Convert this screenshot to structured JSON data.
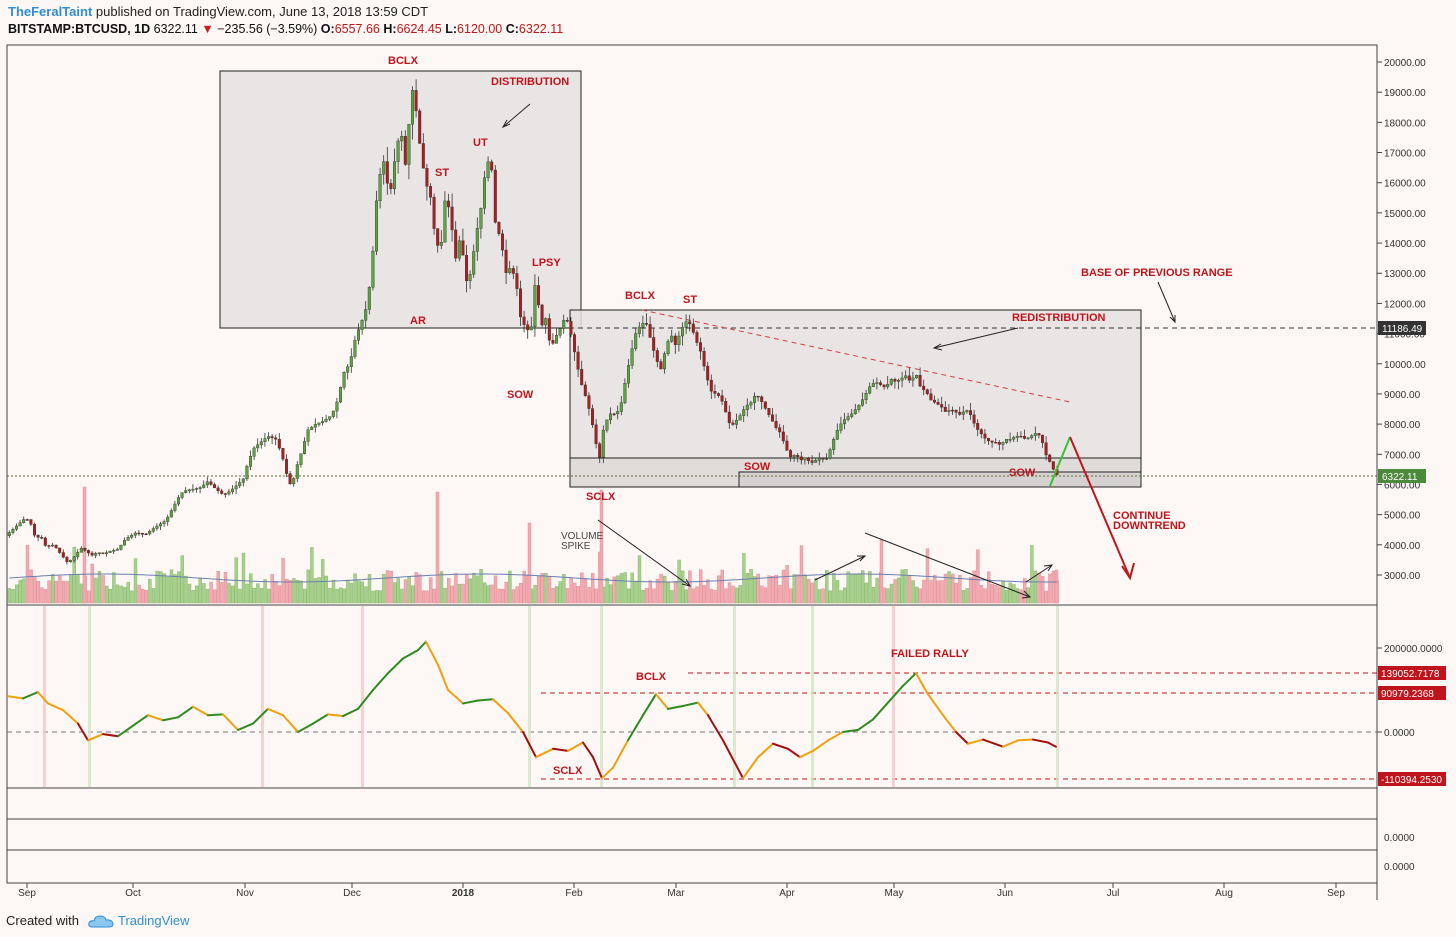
{
  "header": {
    "publisher": "TheFeralTaint",
    "published_text": "published on TradingView.com, June 13, 2018 13:59 CDT",
    "symbol": "BITSTAMP:BTCUSD, 1D",
    "last": "6322.11",
    "change": "−235.56 (−3.59%)",
    "o_label": "O:",
    "open": "6557.66",
    "h_label": "H:",
    "high": "6624.45",
    "l_label": "L:",
    "low": "6120.00",
    "c_label": "C:",
    "close": "6322.11"
  },
  "footer": {
    "created_with": "Created with",
    "brand": "TradingView"
  },
  "colors": {
    "up": "#5aa63c",
    "down": "#b01c1c",
    "annot": "#c0141c",
    "box": "#e8e4e2",
    "osc_green": "#2f8a20",
    "osc_orange": "#f0a010",
    "osc_red": "#a01010"
  },
  "chart_data": {
    "type": "candlestick",
    "title": "",
    "x_labels": [
      "Sep",
      "Oct",
      "Nov",
      "Dec",
      "2018",
      "Feb",
      "Mar",
      "Apr",
      "May",
      "Jun",
      "Jul",
      "Aug",
      "Sep"
    ],
    "price_axis": {
      "ticks": [
        "20000.00",
        "19000.00",
        "18000.00",
        "17000.00",
        "16000.00",
        "15000.00",
        "14000.00",
        "13000.00",
        "12000.00",
        "11000.00",
        "10000.00",
        "9000.00",
        "8000.00",
        "7000.00",
        "6000.00",
        "5000.00",
        "4000.00",
        "3000.00"
      ],
      "ylim": [
        2500,
        20500
      ]
    },
    "price_tags": [
      {
        "value": "11186.49",
        "color": "#333333"
      },
      {
        "value": "6322.11",
        "color": "#4a8a3a"
      }
    ],
    "osc_axis": {
      "ticks": [
        "200000.0000",
        "0.0000"
      ]
    },
    "osc_tags": [
      {
        "value": "139052.7178",
        "color": "#c0141c"
      },
      {
        "value": "90979.2368",
        "color": "#c0141c"
      },
      {
        "value": "-110394.2530",
        "color": "#c0141c"
      }
    ],
    "empty_panel_ticks": [
      "0.0000",
      "0.0000"
    ],
    "price_path": [
      [
        0,
        4300
      ],
      [
        10,
        4600
      ],
      [
        20,
        4900
      ],
      [
        25,
        4700
      ],
      [
        30,
        4200
      ],
      [
        35,
        4300
      ],
      [
        40,
        3950
      ],
      [
        48,
        4000
      ],
      [
        55,
        3700
      ],
      [
        62,
        3400
      ],
      [
        70,
        3650
      ],
      [
        75,
        3900
      ],
      [
        80,
        3800
      ],
      [
        86,
        3650
      ],
      [
        92,
        3750
      ],
      [
        98,
        3700
      ],
      [
        105,
        3800
      ],
      [
        112,
        3850
      ],
      [
        120,
        4200
      ],
      [
        130,
        4400
      ],
      [
        140,
        4350
      ],
      [
        150,
        4600
      ],
      [
        160,
        4800
      ],
      [
        170,
        5400
      ],
      [
        175,
        5700
      ],
      [
        180,
        5800
      ],
      [
        188,
        5850
      ],
      [
        195,
        5900
      ],
      [
        202,
        6100
      ],
      [
        210,
        5850
      ],
      [
        218,
        5650
      ],
      [
        225,
        5800
      ],
      [
        232,
        6000
      ],
      [
        238,
        6200
      ],
      [
        242,
        6700
      ],
      [
        248,
        7200
      ],
      [
        255,
        7400
      ],
      [
        262,
        7600
      ],
      [
        270,
        7500
      ],
      [
        276,
        7000
      ],
      [
        282,
        6200
      ],
      [
        286,
        5900
      ],
      [
        290,
        6500
      ],
      [
        296,
        7100
      ],
      [
        302,
        7800
      ],
      [
        310,
        8000
      ],
      [
        318,
        8100
      ],
      [
        326,
        8300
      ],
      [
        332,
        8800
      ],
      [
        338,
        9700
      ],
      [
        344,
        10000
      ],
      [
        350,
        10900
      ],
      [
        356,
        11400
      ],
      [
        362,
        12000
      ],
      [
        368,
        14000
      ],
      [
        372,
        16000
      ],
      [
        378,
        16700
      ],
      [
        384,
        15500
      ],
      [
        390,
        17000
      ],
      [
        395,
        17800
      ],
      [
        400,
        16500
      ],
      [
        406,
        19200
      ],
      [
        410,
        18500
      ],
      [
        415,
        17000
      ],
      [
        420,
        16000
      ],
      [
        425,
        15500
      ],
      [
        430,
        14000
      ],
      [
        435,
        13800
      ],
      [
        440,
        15700
      ],
      [
        445,
        14800
      ],
      [
        450,
        13500
      ],
      [
        455,
        14300
      ],
      [
        460,
        12700
      ],
      [
        465,
        13000
      ],
      [
        470,
        14200
      ],
      [
        475,
        15100
      ],
      [
        480,
        16500
      ],
      [
        485,
        16900
      ],
      [
        490,
        14500
      ],
      [
        495,
        14200
      ],
      [
        500,
        13000
      ],
      [
        505,
        13200
      ],
      [
        510,
        12800
      ],
      [
        515,
        11500
      ],
      [
        520,
        11200
      ],
      [
        525,
        11000
      ],
      [
        530,
        12900
      ],
      [
        535,
        11200
      ],
      [
        540,
        11500
      ],
      [
        545,
        10500
      ],
      [
        550,
        10900
      ],
      [
        555,
        11200
      ],
      [
        560,
        11600
      ],
      [
        565,
        11000
      ],
      [
        570,
        10200
      ],
      [
        575,
        9400
      ],
      [
        580,
        8900
      ],
      [
        585,
        8300
      ],
      [
        590,
        7400
      ],
      [
        594,
        6900
      ],
      [
        598,
        7900
      ],
      [
        602,
        8200
      ],
      [
        606,
        8400
      ],
      [
        610,
        8300
      ],
      [
        615,
        8600
      ],
      [
        620,
        9500
      ],
      [
        625,
        10300
      ],
      [
        630,
        11000
      ],
      [
        635,
        11300
      ],
      [
        640,
        11400
      ],
      [
        645,
        10800
      ],
      [
        650,
        10200
      ],
      [
        655,
        9800
      ],
      [
        660,
        10500
      ],
      [
        665,
        11000
      ],
      [
        670,
        10600
      ],
      [
        675,
        11100
      ],
      [
        680,
        11400
      ],
      [
        685,
        11300
      ],
      [
        690,
        10800
      ],
      [
        695,
        10400
      ],
      [
        700,
        9700
      ],
      [
        705,
        9100
      ],
      [
        710,
        9000
      ],
      [
        715,
        8900
      ],
      [
        720,
        8400
      ],
      [
        725,
        7900
      ],
      [
        730,
        8100
      ],
      [
        735,
        8300
      ],
      [
        740,
        8600
      ],
      [
        745,
        8700
      ],
      [
        750,
        9000
      ],
      [
        755,
        8800
      ],
      [
        760,
        8500
      ],
      [
        765,
        8200
      ],
      [
        770,
        7900
      ],
      [
        775,
        7700
      ],
      [
        780,
        7200
      ],
      [
        785,
        6900
      ],
      [
        790,
        7000
      ],
      [
        795,
        6800
      ],
      [
        800,
        6900
      ],
      [
        805,
        6700
      ],
      [
        810,
        6800
      ],
      [
        815,
        6900
      ],
      [
        820,
        6800
      ],
      [
        825,
        7200
      ],
      [
        830,
        7700
      ],
      [
        835,
        8000
      ],
      [
        840,
        8200
      ],
      [
        845,
        8300
      ],
      [
        850,
        8500
      ],
      [
        855,
        8700
      ],
      [
        860,
        9000
      ],
      [
        865,
        9300
      ],
      [
        870,
        9400
      ],
      [
        875,
        9300
      ],
      [
        880,
        9200
      ],
      [
        885,
        9500
      ],
      [
        890,
        9400
      ],
      [
        895,
        9500
      ],
      [
        900,
        9600
      ],
      [
        905,
        9400
      ],
      [
        910,
        9700
      ],
      [
        915,
        9200
      ],
      [
        920,
        9100
      ],
      [
        925,
        8800
      ],
      [
        930,
        8700
      ],
      [
        935,
        8600
      ],
      [
        940,
        8400
      ],
      [
        945,
        8500
      ],
      [
        950,
        8400
      ],
      [
        955,
        8300
      ],
      [
        960,
        8500
      ],
      [
        965,
        8300
      ],
      [
        970,
        7900
      ],
      [
        975,
        7700
      ],
      [
        980,
        7500
      ],
      [
        985,
        7400
      ],
      [
        990,
        7400
      ],
      [
        995,
        7300
      ],
      [
        1000,
        7500
      ],
      [
        1005,
        7500
      ],
      [
        1010,
        7600
      ],
      [
        1015,
        7600
      ],
      [
        1020,
        7500
      ],
      [
        1025,
        7600
      ],
      [
        1030,
        7700
      ],
      [
        1035,
        7600
      ],
      [
        1040,
        7000
      ],
      [
        1045,
        6700
      ],
      [
        1050,
        6322
      ]
    ],
    "oscillator_path": [
      [
        0,
        85000
      ],
      [
        15,
        80000
      ],
      [
        30,
        95000
      ],
      [
        40,
        68000
      ],
      [
        55,
        52000
      ],
      [
        70,
        20000
      ],
      [
        80,
        -20000
      ],
      [
        95,
        -5000
      ],
      [
        110,
        -10000
      ],
      [
        125,
        15000
      ],
      [
        140,
        40000
      ],
      [
        155,
        28000
      ],
      [
        170,
        35000
      ],
      [
        185,
        60000
      ],
      [
        200,
        40000
      ],
      [
        215,
        42000
      ],
      [
        230,
        5000
      ],
      [
        245,
        20000
      ],
      [
        260,
        55000
      ],
      [
        275,
        40000
      ],
      [
        290,
        0
      ],
      [
        305,
        20000
      ],
      [
        320,
        42000
      ],
      [
        335,
        38000
      ],
      [
        350,
        55000
      ],
      [
        365,
        100000
      ],
      [
        380,
        140000
      ],
      [
        395,
        175000
      ],
      [
        410,
        195000
      ],
      [
        418,
        215000
      ],
      [
        430,
        160000
      ],
      [
        440,
        100000
      ],
      [
        455,
        68000
      ],
      [
        470,
        75000
      ],
      [
        485,
        78000
      ],
      [
        500,
        45000
      ],
      [
        515,
        0
      ],
      [
        528,
        -60000
      ],
      [
        545,
        -40000
      ],
      [
        560,
        -45000
      ],
      [
        575,
        -25000
      ],
      [
        585,
        -60000
      ],
      [
        594,
        -110000
      ],
      [
        605,
        -85000
      ],
      [
        620,
        -20000
      ],
      [
        635,
        40000
      ],
      [
        648,
        90000
      ],
      [
        660,
        55000
      ],
      [
        675,
        62000
      ],
      [
        690,
        70000
      ],
      [
        700,
        40000
      ],
      [
        715,
        -20000
      ],
      [
        735,
        -110000
      ],
      [
        750,
        -60000
      ],
      [
        765,
        -28000
      ],
      [
        780,
        -40000
      ],
      [
        792,
        -60000
      ],
      [
        805,
        -45000
      ],
      [
        820,
        -20000
      ],
      [
        835,
        0
      ],
      [
        850,
        5000
      ],
      [
        865,
        30000
      ],
      [
        880,
        70000
      ],
      [
        895,
        110000
      ],
      [
        908,
        140000
      ],
      [
        920,
        90000
      ],
      [
        935,
        40000
      ],
      [
        948,
        0
      ],
      [
        960,
        -28000
      ],
      [
        975,
        -18000
      ],
      [
        995,
        -35000
      ],
      [
        1010,
        -20000
      ],
      [
        1025,
        -18000
      ],
      [
        1040,
        -25000
      ],
      [
        1048,
        -35000
      ]
    ],
    "annotations": [
      {
        "text": "BCLX"
      },
      {
        "text": "DISTRIBUTION"
      },
      {
        "text": "UT"
      },
      {
        "text": "ST"
      },
      {
        "text": "AR"
      },
      {
        "text": "LPSY"
      },
      {
        "text": "SOW"
      },
      {
        "text": "BCLX"
      },
      {
        "text": "ST"
      },
      {
        "text": "REDISTRIBUTION"
      },
      {
        "text": "BASE OF PREVIOUS RANGE"
      },
      {
        "text": "SOW"
      },
      {
        "text": "SOW"
      },
      {
        "text": "SCLX"
      },
      {
        "text": "CONTINUE"
      },
      {
        "text": "DOWNTREND"
      },
      {
        "text": "VOLUME"
      },
      {
        "text": "SPIKE"
      },
      {
        "text": "FAILED RALLY"
      },
      {
        "text": "BCLX"
      },
      {
        "text": "SCLX"
      }
    ]
  }
}
